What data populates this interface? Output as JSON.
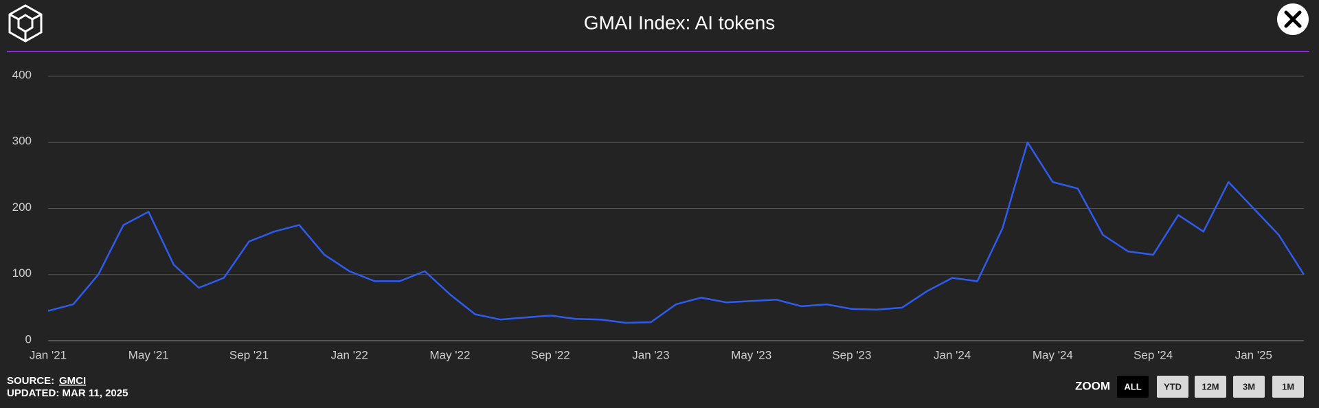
{
  "header": {
    "title": "GMAI Index: AI tokens"
  },
  "chart_data": {
    "type": "line",
    "x": [
      "2021-01",
      "2021-02",
      "2021-03",
      "2021-04",
      "2021-05",
      "2021-06",
      "2021-07",
      "2021-08",
      "2021-09",
      "2021-10",
      "2021-11",
      "2021-12",
      "2022-01",
      "2022-02",
      "2022-03",
      "2022-04",
      "2022-05",
      "2022-06",
      "2022-07",
      "2022-08",
      "2022-09",
      "2022-10",
      "2022-11",
      "2022-12",
      "2023-01",
      "2023-02",
      "2023-03",
      "2023-04",
      "2023-05",
      "2023-06",
      "2023-07",
      "2023-08",
      "2023-09",
      "2023-10",
      "2023-11",
      "2023-12",
      "2024-01",
      "2024-02",
      "2024-03",
      "2024-04",
      "2024-05",
      "2024-06",
      "2024-07",
      "2024-08",
      "2024-09",
      "2024-10",
      "2024-11",
      "2024-12",
      "2025-01",
      "2025-02",
      "2025-03"
    ],
    "values": [
      45,
      55,
      100,
      175,
      195,
      115,
      80,
      95,
      150,
      165,
      175,
      130,
      105,
      90,
      90,
      105,
      70,
      40,
      32,
      35,
      38,
      33,
      32,
      27,
      28,
      55,
      65,
      58,
      60,
      62,
      52,
      55,
      48,
      47,
      50,
      75,
      95,
      90,
      170,
      300,
      240,
      230,
      160,
      135,
      130,
      190,
      165,
      240,
      200,
      160,
      100
    ],
    "color": "#2f5cf0",
    "xlim": [
      "2021-01",
      "2025-03"
    ],
    "xticks": [
      {
        "value": "2021-01",
        "label": "Jan '21"
      },
      {
        "value": "2021-05",
        "label": "May '21"
      },
      {
        "value": "2021-09",
        "label": "Sep '21"
      },
      {
        "value": "2022-01",
        "label": "Jan '22"
      },
      {
        "value": "2022-05",
        "label": "May '22"
      },
      {
        "value": "2022-09",
        "label": "Sep '22"
      },
      {
        "value": "2023-01",
        "label": "Jan '23"
      },
      {
        "value": "2023-05",
        "label": "May '23"
      },
      {
        "value": "2023-09",
        "label": "Sep '23"
      },
      {
        "value": "2024-01",
        "label": "Jan '24"
      },
      {
        "value": "2024-05",
        "label": "May '24"
      },
      {
        "value": "2024-09",
        "label": "Sep '24"
      },
      {
        "value": "2025-01",
        "label": "Jan '25"
      }
    ],
    "ylim": [
      0,
      400
    ],
    "yticks": [
      0,
      100,
      200,
      300,
      400
    ],
    "grid": true
  },
  "footer": {
    "source_label": "SOURCE:",
    "source": "GMCI",
    "updated": "UPDATED: MAR 11, 2025"
  },
  "zoom": {
    "label": "ZOOM",
    "buttons": [
      "ALL",
      "YTD",
      "12M",
      "3M",
      "1M"
    ],
    "active": "ALL"
  }
}
